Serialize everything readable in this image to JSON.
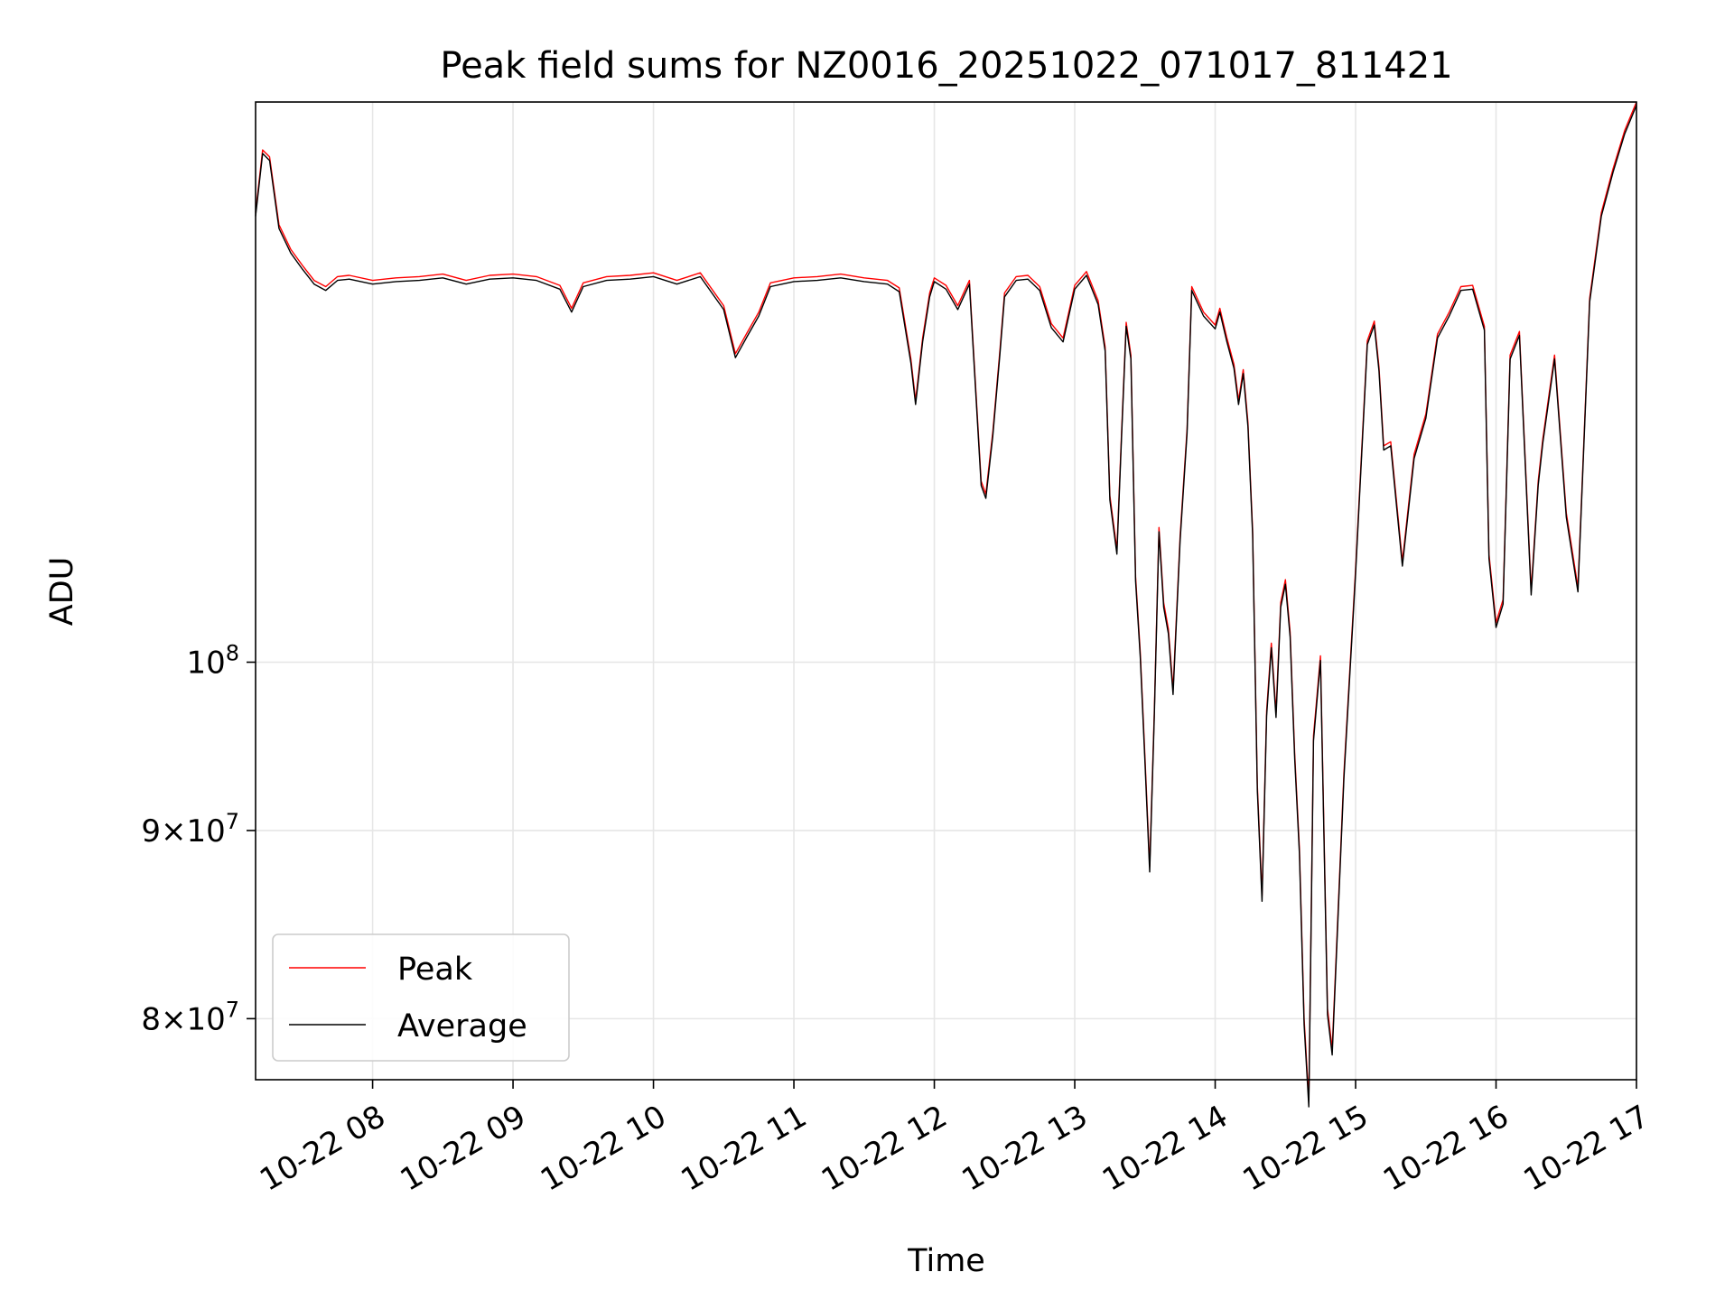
{
  "chart_data": {
    "type": "line",
    "title": "Peak field sums for NZ0016_20251022_071017_811421",
    "xlabel": "Time",
    "ylabel": "ADU",
    "y_scale": "log",
    "grid": true,
    "legend_position": "lower-left",
    "xlim": [
      "2025-10-22 07:10",
      "2025-10-22 17:00"
    ],
    "ylim": [
      77000000,
      142000000
    ],
    "x_tick_labels": [
      "10-22 08",
      "10-22 09",
      "10-22 10",
      "10-22 11",
      "10-22 12",
      "10-22 13",
      "10-22 14",
      "10-22 15",
      "10-22 16",
      "10-22 17"
    ],
    "y_tick_labels": [
      {
        "value": 80000000,
        "mantissa": "8",
        "exponent": "7"
      },
      {
        "value": 90000000,
        "mantissa": "9",
        "exponent": "7"
      },
      {
        "value": 100000000,
        "base": "10",
        "exponent": "8"
      }
    ],
    "x": [
      "07:10",
      "07:13",
      "07:16",
      "07:20",
      "07:25",
      "07:30",
      "07:35",
      "07:40",
      "07:45",
      "07:50",
      "08:00",
      "08:10",
      "08:20",
      "08:30",
      "08:40",
      "08:50",
      "09:00",
      "09:10",
      "09:20",
      "09:25",
      "09:30",
      "09:40",
      "09:50",
      "10:00",
      "10:10",
      "10:20",
      "10:30",
      "10:35",
      "10:40",
      "10:45",
      "10:50",
      "10:55",
      "11:00",
      "11:10",
      "11:20",
      "11:30",
      "11:40",
      "11:45",
      "11:50",
      "11:52",
      "11:55",
      "11:58",
      "12:00",
      "12:05",
      "12:10",
      "12:15",
      "12:20",
      "12:22",
      "12:25",
      "12:28",
      "12:30",
      "12:35",
      "12:40",
      "12:45",
      "12:50",
      "12:55",
      "13:00",
      "13:05",
      "13:10",
      "13:13",
      "13:15",
      "13:18",
      "13:20",
      "13:22",
      "13:24",
      "13:26",
      "13:28",
      "13:30",
      "13:32",
      "13:34",
      "13:36",
      "13:38",
      "13:40",
      "13:42",
      "13:45",
      "13:48",
      "13:50",
      "13:55",
      "14:00",
      "14:02",
      "14:05",
      "14:08",
      "14:10",
      "14:12",
      "14:14",
      "14:16",
      "14:18",
      "14:20",
      "14:22",
      "14:24",
      "14:26",
      "14:28",
      "14:30",
      "14:32",
      "14:34",
      "14:36",
      "14:38",
      "14:40",
      "14:42",
      "14:45",
      "14:48",
      "14:50",
      "14:55",
      "15:00",
      "15:05",
      "15:08",
      "15:10",
      "15:12",
      "15:15",
      "15:20",
      "15:25",
      "15:30",
      "15:35",
      "15:40",
      "15:45",
      "15:50",
      "15:55",
      "15:57",
      "16:00",
      "16:03",
      "16:06",
      "16:10",
      "16:15",
      "16:18",
      "16:20",
      "16:25",
      "16:30",
      "16:35",
      "16:40",
      "16:45",
      "16:50",
      "16:55",
      "17:00"
    ],
    "series": [
      {
        "name": "Peak",
        "color": "#ff0000",
        "values": [
          132.5,
          137.8,
          137.2,
          131.5,
          129.5,
          128.2,
          127.0,
          126.5,
          127.3,
          127.4,
          127.0,
          127.2,
          127.3,
          127.5,
          127.0,
          127.4,
          127.5,
          127.3,
          126.6,
          124.8,
          126.8,
          127.3,
          127.4,
          127.6,
          127.0,
          127.6,
          125.0,
          121.3,
          122.9,
          124.5,
          126.8,
          127.0,
          127.2,
          127.3,
          127.5,
          127.2,
          127.0,
          126.4,
          120.9,
          117.8,
          122.5,
          126.0,
          127.2,
          126.6,
          125.0,
          127.0,
          112.0,
          111.1,
          115.5,
          121.5,
          126.0,
          127.3,
          127.4,
          126.5,
          123.6,
          122.5,
          126.6,
          127.7,
          125.4,
          121.8,
          111.0,
          107.3,
          115.5,
          123.7,
          121.2,
          105.5,
          100.6,
          94.2,
          88.0,
          96.9,
          108.8,
          103.8,
          102.1,
          98.3,
          108.2,
          115.7,
          126.5,
          124.5,
          123.5,
          124.8,
          122.5,
          120.5,
          117.8,
          120.1,
          116.2,
          108.6,
          92.6,
          86.4,
          97.0,
          101.2,
          96.9,
          103.8,
          105.3,
          101.9,
          94.4,
          89.0,
          80.0,
          76.0,
          95.5,
          100.4,
          80.5,
          78.5,
          93.3,
          106.0,
          122.3,
          123.8,
          120.3,
          114.5,
          114.8,
          106.5,
          113.9,
          116.8,
          122.8,
          124.5,
          126.5,
          126.6,
          123.4,
          107.0,
          102.5,
          104.0,
          121.2,
          123.0,
          104.6,
          112.0,
          115.0,
          121.2,
          109.8,
          104.8,
          125.6,
          132.5,
          136.2,
          139.5,
          142.0
        ]
      },
      {
        "name": "Average",
        "color": "#000000",
        "values": [
          132.2,
          137.5,
          136.9,
          131.2,
          129.2,
          127.9,
          126.7,
          126.2,
          127.0,
          127.1,
          126.7,
          126.9,
          127.0,
          127.2,
          126.7,
          127.1,
          127.2,
          127.0,
          126.3,
          124.5,
          126.5,
          127.0,
          127.1,
          127.3,
          126.7,
          127.3,
          124.7,
          121.0,
          122.6,
          124.2,
          126.5,
          126.7,
          126.9,
          127.0,
          127.2,
          126.9,
          126.7,
          126.1,
          120.6,
          117.5,
          122.2,
          125.7,
          126.9,
          126.3,
          124.7,
          126.7,
          111.7,
          110.8,
          115.2,
          121.2,
          125.7,
          127.0,
          127.1,
          126.2,
          123.3,
          122.2,
          126.3,
          127.4,
          125.1,
          121.5,
          110.7,
          107.0,
          115.2,
          123.4,
          120.9,
          105.2,
          100.3,
          93.9,
          87.7,
          96.6,
          108.5,
          103.5,
          101.8,
          98.0,
          107.9,
          115.4,
          126.2,
          124.2,
          123.2,
          124.5,
          122.2,
          120.2,
          117.5,
          119.8,
          115.9,
          108.3,
          92.3,
          86.1,
          96.7,
          100.9,
          96.6,
          103.5,
          105.0,
          101.6,
          94.1,
          88.7,
          79.7,
          75.7,
          95.2,
          100.1,
          80.2,
          78.2,
          93.0,
          105.7,
          122.0,
          123.5,
          120.0,
          114.2,
          114.5,
          106.2,
          113.6,
          116.5,
          122.5,
          124.2,
          126.2,
          126.3,
          123.1,
          106.7,
          102.2,
          103.7,
          120.9,
          122.7,
          104.3,
          111.7,
          114.7,
          120.9,
          109.5,
          104.5,
          125.3,
          132.2,
          135.9,
          139.2,
          141.7
        ]
      }
    ]
  }
}
